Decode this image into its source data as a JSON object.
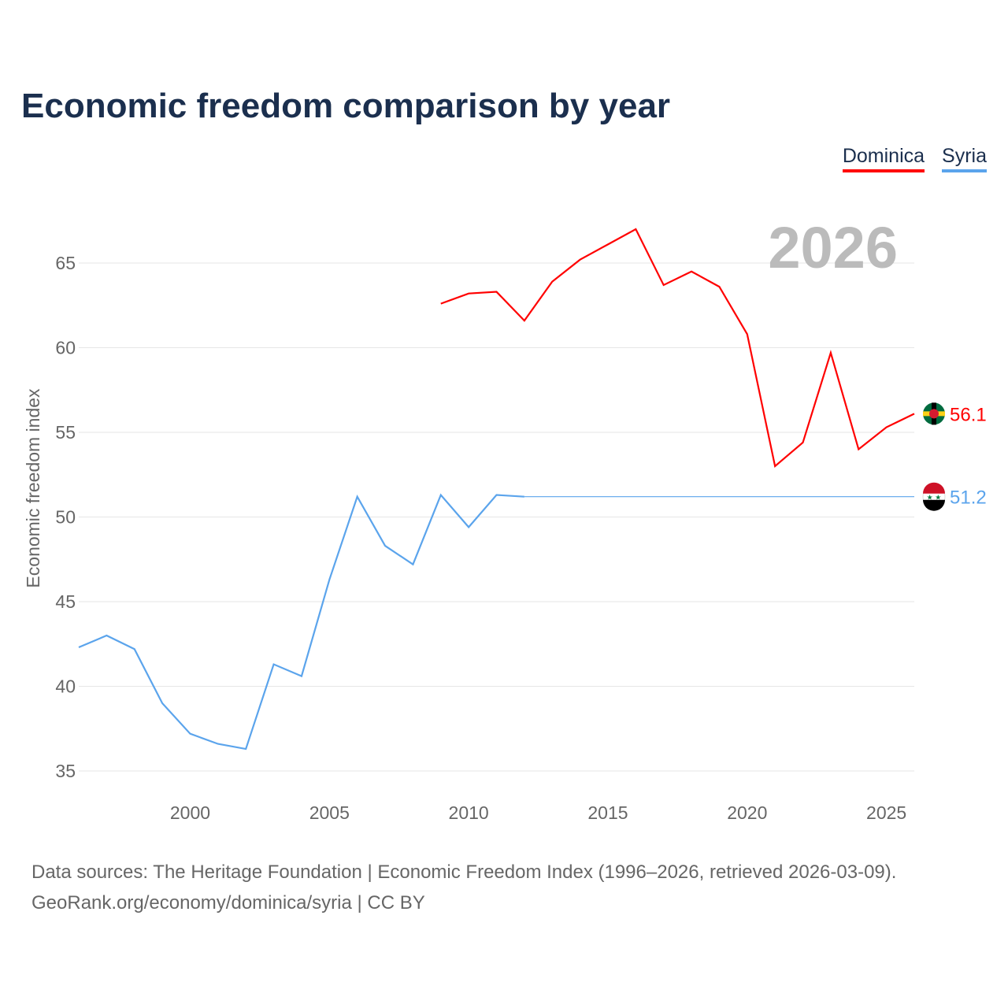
{
  "title": "Economic freedom comparison by year",
  "year_watermark": "2026",
  "footer": {
    "line1": "Data sources: The Heritage Foundation | Economic Freedom Index (1996–2026, retrieved 2026-03-09).",
    "line2": "GeoRank.org/economy/dominica/syria | CC BY"
  },
  "chart_data": {
    "type": "line",
    "title": "Economic freedom comparison by year",
    "xlabel": "",
    "ylabel": "Economic freedom index",
    "xlim": [
      1996,
      2026
    ],
    "ylim": [
      33.5,
      69
    ],
    "xticks": [
      2000,
      2005,
      2010,
      2015,
      2020,
      2025
    ],
    "yticks": [
      35,
      40,
      45,
      50,
      55,
      60,
      65
    ],
    "grid": true,
    "legend_placement": "top-right",
    "series": [
      {
        "name": "Dominica",
        "color": "#ff0000",
        "end_label": "56.1",
        "x": [
          2009,
          2010,
          2011,
          2012,
          2013,
          2014,
          2015,
          2016,
          2017,
          2018,
          2019,
          2020,
          2021,
          2022,
          2023,
          2024,
          2025,
          2026
        ],
        "y": [
          62.6,
          63.2,
          63.3,
          61.6,
          63.9,
          65.2,
          66.1,
          67.0,
          63.7,
          64.5,
          63.6,
          60.8,
          53.0,
          54.4,
          59.7,
          54.0,
          55.3,
          56.1
        ]
      },
      {
        "name": "Syria",
        "color": "#5ba4ec",
        "end_label": "51.2",
        "x": [
          1996,
          1997,
          1998,
          1999,
          2000,
          2001,
          2002,
          2003,
          2004,
          2005,
          2006,
          2007,
          2008,
          2009,
          2010,
          2011,
          2012
        ],
        "y": [
          42.3,
          43.0,
          42.2,
          39.0,
          37.2,
          36.6,
          36.3,
          41.3,
          40.6,
          46.3,
          51.2,
          48.3,
          47.2,
          51.3,
          49.4,
          51.3,
          51.2
        ],
        "carried_forward_to": 2026
      }
    ]
  }
}
